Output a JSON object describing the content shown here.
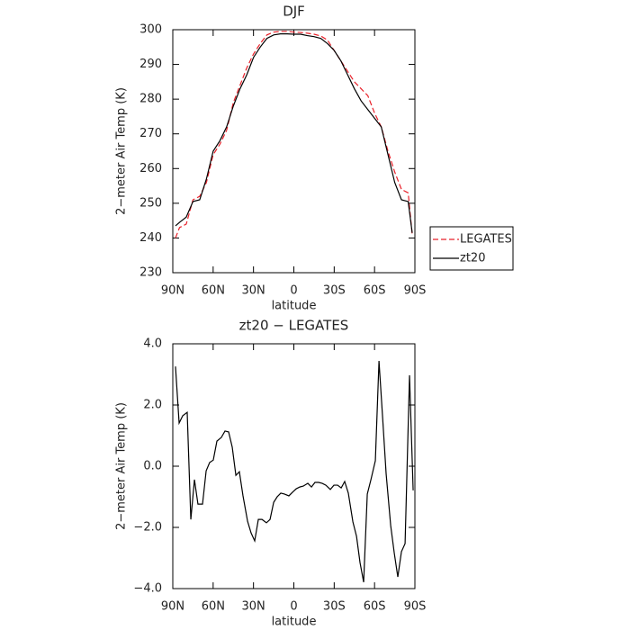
{
  "chart_data": [
    {
      "type": "line",
      "title": "DJF",
      "xlabel": "latitude",
      "ylabel": "2−meter Air Temp (K)",
      "x": [
        88,
        85,
        80,
        75,
        70,
        65,
        60,
        55,
        50,
        45,
        40,
        35,
        30,
        25,
        20,
        15,
        10,
        5,
        0,
        -5,
        -10,
        -15,
        -20,
        -25,
        -30,
        -35,
        -40,
        -45,
        -50,
        -55,
        -60,
        -65,
        -70,
        -75,
        -80,
        -85,
        -88
      ],
      "series": [
        {
          "name": "LEGATES",
          "color": "#e8212a",
          "linestyle": "dashed",
          "values": [
            240,
            243,
            244,
            251,
            252,
            256,
            264,
            267,
            271,
            279,
            284,
            289,
            293,
            296,
            298.5,
            299.3,
            299.5,
            299.5,
            299.3,
            299.2,
            299,
            298.7,
            298.2,
            297,
            294,
            291,
            288,
            285,
            283,
            281,
            276,
            272,
            265,
            259,
            254,
            253,
            241
          ]
        },
        {
          "name": "zt20",
          "color": "#000000",
          "linestyle": "solid",
          "values": [
            243.5,
            244.5,
            246,
            250.5,
            251,
            257,
            265,
            268,
            272,
            278,
            283,
            287,
            292,
            295,
            297.5,
            298.5,
            298.8,
            298.8,
            298.7,
            298.7,
            298.3,
            298,
            297.5,
            296,
            294,
            291,
            287,
            283,
            279.5,
            277,
            274.5,
            272,
            264,
            256,
            251,
            250.5,
            241.5
          ]
        }
      ],
      "xlim": [
        90,
        -90
      ],
      "xticks": [
        {
          "value": 90,
          "label": "90N"
        },
        {
          "value": 60,
          "label": "60N"
        },
        {
          "value": 30,
          "label": "30N"
        },
        0,
        {
          "value": -30,
          "label": "30S"
        },
        {
          "value": -60,
          "label": "60S"
        },
        {
          "value": -90,
          "label": "90S"
        }
      ],
      "ylim": [
        230,
        300
      ],
      "yticks": [
        230,
        240,
        250,
        260,
        270,
        280,
        290,
        300
      ],
      "legend": "right"
    },
    {
      "type": "line",
      "title": "zt20 − LEGATES",
      "xlabel": "latitude",
      "ylabel": "2−meter Air Temp (K)",
      "x": [
        88,
        85.3,
        82.6,
        79.3,
        76.6,
        73.9,
        71.3,
        67.9,
        65.2,
        62.6,
        59.9,
        57.2,
        53.9,
        51.2,
        48.5,
        45.8,
        43.1,
        40.5,
        37.8,
        34.4,
        31.8,
        29.1,
        26.4,
        23.7,
        20.4,
        17.7,
        15,
        12.4,
        9.7,
        7,
        3.7,
        1,
        -1.7,
        -4.4,
        -7,
        -10.4,
        -13.1,
        -15.7,
        -18.4,
        -21.1,
        -23.8,
        -27.1,
        -29.8,
        -32.5,
        -35.2,
        -37.8,
        -40.5,
        -43.9,
        -46.6,
        -49.2,
        -51.9,
        -54.6,
        -57.3,
        -60.6,
        -63.3,
        -66,
        -68.6,
        -72,
        -74.7,
        -77.3,
        -80,
        -82.7,
        -86,
        -88.7
      ],
      "series": [
        {
          "color": "#000000",
          "linestyle": "solid",
          "values": [
            3.26,
            1.41,
            1.65,
            1.76,
            -1.74,
            -0.44,
            -1.24,
            -1.24,
            -0.15,
            0.12,
            0.2,
            0.82,
            0.94,
            1.15,
            1.12,
            0.62,
            -0.3,
            -0.18,
            -0.97,
            -1.8,
            -2.18,
            -2.44,
            -1.74,
            -1.74,
            -1.85,
            -1.74,
            -1.18,
            -1,
            -0.88,
            -0.91,
            -0.97,
            -0.85,
            -0.74,
            -0.68,
            -0.65,
            -0.56,
            -0.68,
            -0.53,
            -0.53,
            -0.56,
            -0.62,
            -0.76,
            -0.62,
            -0.62,
            -0.71,
            -0.5,
            -0.88,
            -1.82,
            -2.29,
            -3.15,
            -3.79,
            -0.91,
            -0.44,
            0.18,
            3.44,
            1.59,
            -0.24,
            -1.94,
            -2.85,
            -3.62,
            -2.79,
            -2.53,
            2.97,
            -0.79
          ]
        }
      ],
      "xlim": [
        90,
        -90
      ],
      "xticks": [
        {
          "value": 90,
          "label": "90N"
        },
        {
          "value": 60,
          "label": "60N"
        },
        {
          "value": 30,
          "label": "30N"
        },
        0,
        {
          "value": -30,
          "label": "30S"
        },
        {
          "value": -60,
          "label": "60S"
        },
        {
          "value": -90,
          "label": "90S"
        }
      ],
      "ylim": [
        -4,
        4
      ],
      "yticks": [
        {
          "value": -4,
          "label": "−4.0"
        },
        {
          "value": -2,
          "label": "−2.0"
        },
        {
          "value": 0,
          "label": "0.0"
        },
        {
          "value": 2,
          "label": "2.0"
        },
        {
          "value": 4,
          "label": "4.0"
        }
      ]
    }
  ]
}
